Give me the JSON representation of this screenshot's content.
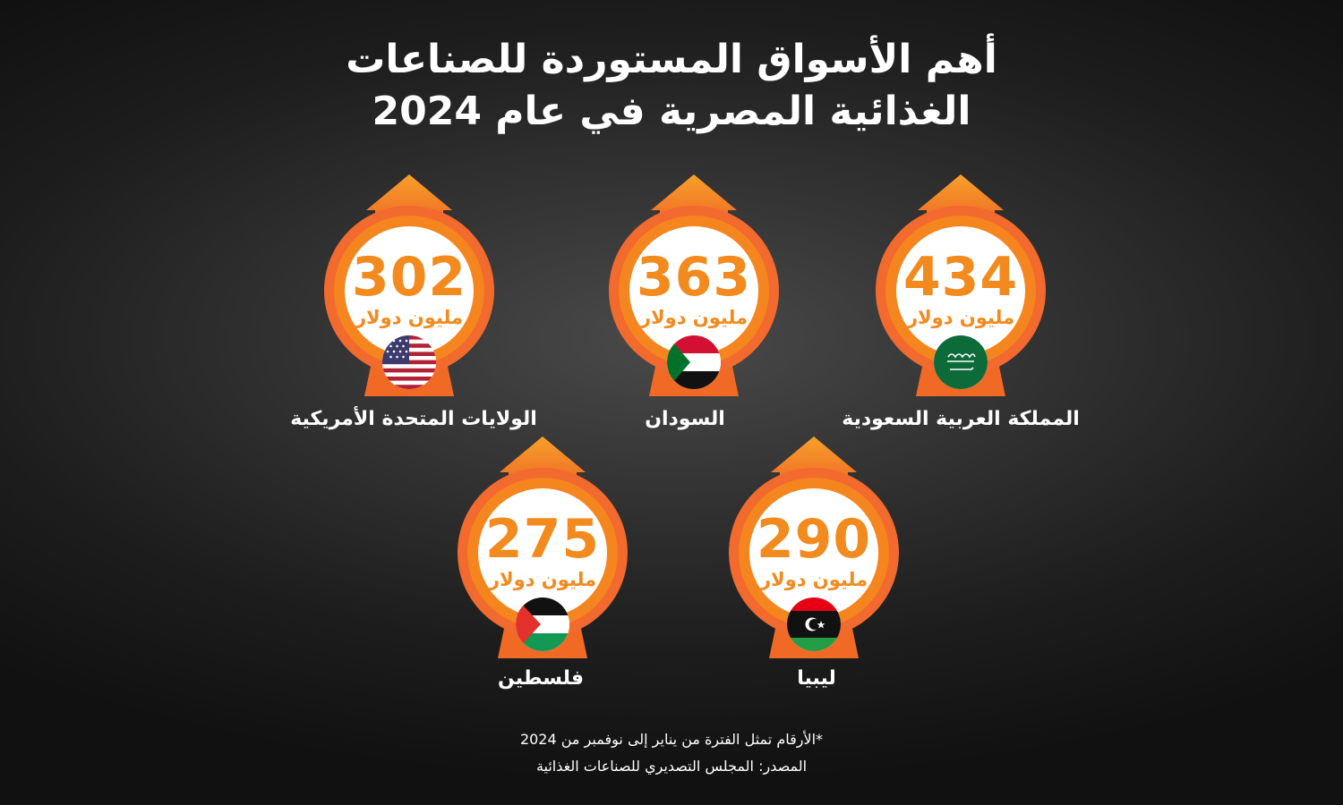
{
  "title": {
    "line1": "أهم الأسواق المستوردة للصناعات",
    "line2": "الغذائية المصرية في عام 2024"
  },
  "unit_label": "مليون دولار",
  "colors": {
    "accent": "#f28a1e",
    "ring": "#f26a2e",
    "background": "#2b2b2b"
  },
  "markets": [
    {
      "country": "المملكة العربية السعودية",
      "value": "434",
      "flag_icon": "saudi-arabia-flag-icon"
    },
    {
      "country": "السودان",
      "value": "363",
      "flag_icon": "sudan-flag-icon"
    },
    {
      "country": "الولايات المتحدة الأمريكية",
      "value": "302",
      "flag_icon": "usa-flag-icon"
    },
    {
      "country": "ليبيا",
      "value": "290",
      "flag_icon": "libya-flag-icon"
    },
    {
      "country": "فلسطين",
      "value": "275",
      "flag_icon": "palestine-flag-icon"
    }
  ],
  "footnote": "*الأرقام تمثل الفترة من يناير إلى نوفمبر من 2024",
  "source": "المصدر: المجلس التصديري للصناعات الغذائية"
}
